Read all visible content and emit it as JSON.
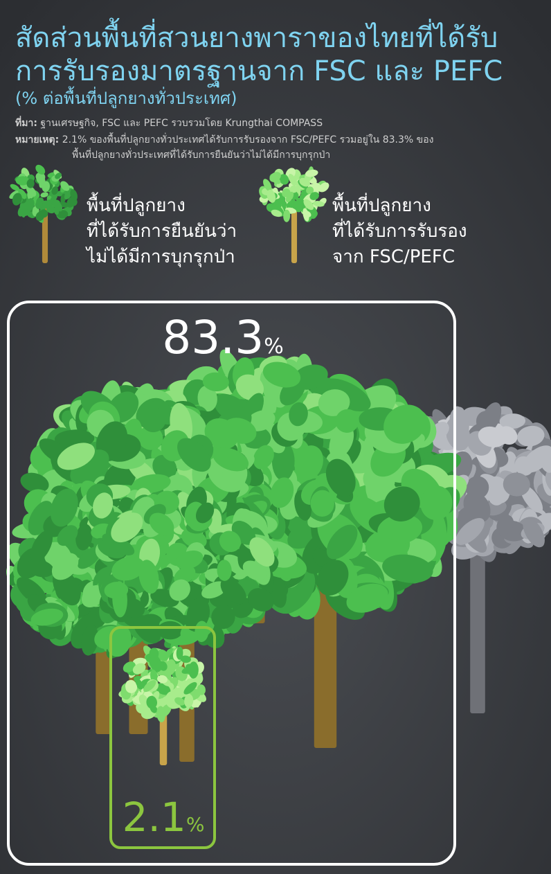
{
  "header": {
    "title": [
      "สัดส่วนพื้นที่สวนยางพาราของไทยที่ได้รับ",
      "การรับรองมาตรฐานจาก FSC และ PEFC"
    ],
    "subtitle": "(% ต่อพื้นที่ปลูกยางทั่วประเทศ)",
    "source": {
      "label": "ที่มา:",
      "text": "ฐานเศรษฐกิจ, FSC และ PEFC รวบรวมโดย Krungthai COMPASS"
    },
    "note": {
      "label": "หมายเหตุ:",
      "text": [
        "2.1% ของพื้นที่ปลูกยางทั่วประเทศได้รับการรับรองจาก FSC/PEFC รวมอยู่ใน 83.3% ของ",
        "พื้นที่ปลูกยางทั่วประเทศที่ได้รับการยืนยันว่าไม่ได้มีการบุกรุกป่า"
      ]
    }
  },
  "legend": [
    {
      "lines": [
        "พื้นที่ปลูกยาง",
        "ที่ได้รับการยืนยันว่า",
        "ไม่ได้มีการบุกรุกป่า"
      ]
    },
    {
      "lines": [
        "พื้นที่ปลูกยาง",
        "ที่ได้รับการรับรอง",
        "จาก FSC/PEFC"
      ]
    }
  ],
  "figures": [
    {
      "value": "83.3",
      "unit": "%"
    },
    {
      "value": "2.1",
      "unit": "%"
    }
  ]
}
